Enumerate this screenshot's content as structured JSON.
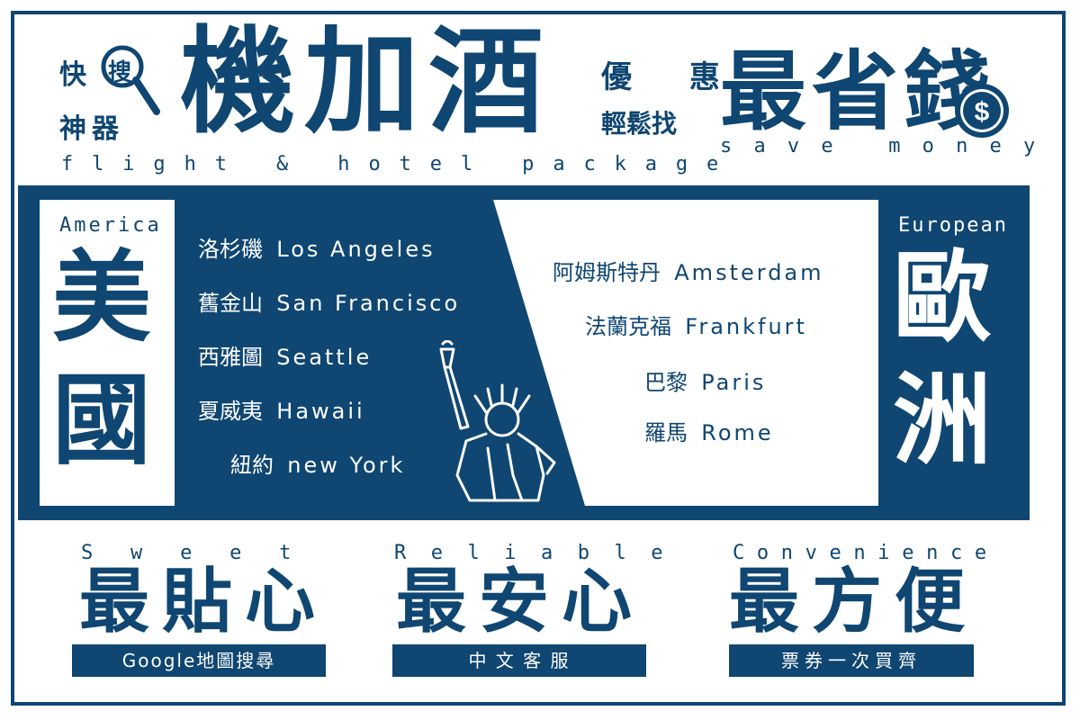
{
  "header": {
    "left_small_top": "快",
    "left_small_search": "搜",
    "left_small_bottom": "神器",
    "main_title": "機加酒",
    "subtitle": "flight & hotel package",
    "right_small_top": "優 惠",
    "right_small_bottom": "輕鬆找",
    "right_title": "最省錢",
    "right_subtitle": "save money"
  },
  "america": {
    "region_en": "America",
    "region_zh_1": "美",
    "region_zh_2": "國",
    "cities": [
      {
        "zh": "洛杉磯",
        "en": "Los Angeles"
      },
      {
        "zh": "舊金山",
        "en": "San Francisco"
      },
      {
        "zh": "西雅圖",
        "en": "Seattle"
      },
      {
        "zh": "夏威夷",
        "en": "Hawaii"
      },
      {
        "zh": "紐約",
        "en": "new York"
      }
    ]
  },
  "europe": {
    "region_en": "European",
    "region_zh_1": "歐",
    "region_zh_2": "洲",
    "cities": [
      {
        "zh": "阿姆斯特丹",
        "en": "Amsterdam"
      },
      {
        "zh": "法蘭克福",
        "en": "Frankfurt"
      },
      {
        "zh": "巴黎",
        "en": "Paris"
      },
      {
        "zh": "羅馬",
        "en": "Rome"
      }
    ]
  },
  "features": [
    {
      "en": "Sweet",
      "zh": "最貼心",
      "tag": "Google地圖搜尋"
    },
    {
      "en": "Reliable",
      "zh": "最安心",
      "tag": "中 文 客 服"
    },
    {
      "en": "Convenience",
      "zh": "最方便",
      "tag": "票券一次買齊"
    }
  ],
  "colors": {
    "navy": "#0f4672",
    "white": "#ffffff"
  },
  "icons": [
    "magnifier-icon",
    "dollar-coin-icon",
    "statue-of-liberty-icon"
  ]
}
